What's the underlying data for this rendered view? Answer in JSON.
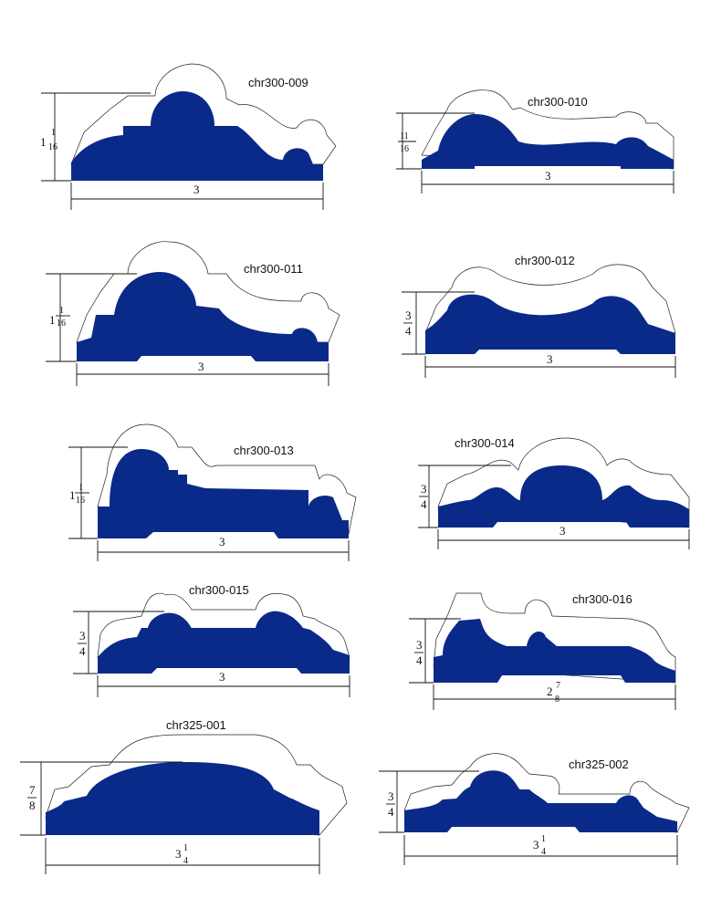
{
  "colors": {
    "profile": "#0a2a8a",
    "outline": "#222222",
    "background": "#ffffff"
  },
  "profiles": [
    {
      "code": "chr300-009",
      "width": "3",
      "height": {
        "whole": "1",
        "num": "1",
        "den": "16"
      }
    },
    {
      "code": "chr300-010",
      "width": "3",
      "height": {
        "whole": "",
        "num": "11",
        "den": "16"
      }
    },
    {
      "code": "chr300-011",
      "width": "3",
      "height": {
        "whole": "1",
        "num": "1",
        "den": "16"
      }
    },
    {
      "code": "chr300-012",
      "width": "3",
      "height": {
        "whole": "",
        "num": "3",
        "den": "4"
      }
    },
    {
      "code": "chr300-013",
      "width": "3",
      "height": {
        "whole": "1",
        "num": "1",
        "den": "16"
      }
    },
    {
      "code": "chr300-014",
      "width": "3",
      "height": {
        "whole": "",
        "num": "3",
        "den": "4"
      }
    },
    {
      "code": "chr300-015",
      "width": "3",
      "height": {
        "whole": "",
        "num": "3",
        "den": "4"
      }
    },
    {
      "code": "chr300-016",
      "width": {
        "whole": "2",
        "num": "7",
        "den": "8"
      },
      "height": {
        "whole": "",
        "num": "3",
        "den": "4"
      }
    },
    {
      "code": "chr325-001",
      "width": {
        "whole": "3",
        "num": "1",
        "den": "4"
      },
      "height": {
        "whole": "",
        "num": "7",
        "den": "8"
      }
    },
    {
      "code": "chr325-002",
      "width": {
        "whole": "3",
        "num": "1",
        "den": "4"
      },
      "height": {
        "whole": "",
        "num": "3",
        "den": "4"
      }
    }
  ]
}
